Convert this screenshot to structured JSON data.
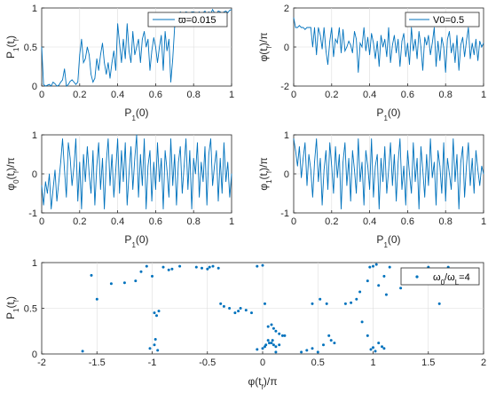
{
  "colors": {
    "series": "#0072bd",
    "axes": "#262626",
    "grid": "#dcdcdc"
  },
  "chart_data": [
    {
      "type": "line",
      "xlabel_main": "P",
      "xlabel_sub": "1",
      "xlabel_tail": "(0)",
      "ylabel_main": "P",
      "ylabel_sub": "1",
      "ylabel_mid": "(t",
      "ylabel_sub2": "f",
      "ylabel_tail": ")",
      "legend": "ϖ=0.015",
      "xlim": [
        0,
        1
      ],
      "ylim": [
        0,
        1
      ],
      "xticks": [
        0,
        0.2,
        0.4,
        0.6,
        0.8,
        1
      ],
      "yticks": [
        0,
        0.5,
        1
      ],
      "xtick_labels": [
        "0",
        "0.2",
        "0.4",
        "0.6",
        "0.8",
        "1"
      ],
      "ytick_labels": [
        "0",
        "0.5",
        "1"
      ],
      "x": [
        0,
        0.01,
        0.02,
        0.03,
        0.04,
        0.05,
        0.06,
        0.07,
        0.08,
        0.09,
        0.1,
        0.11,
        0.12,
        0.13,
        0.14,
        0.15,
        0.16,
        0.17,
        0.18,
        0.19,
        0.2,
        0.21,
        0.22,
        0.23,
        0.24,
        0.25,
        0.26,
        0.27,
        0.28,
        0.29,
        0.3,
        0.31,
        0.32,
        0.33,
        0.34,
        0.35,
        0.36,
        0.37,
        0.38,
        0.39,
        0.4,
        0.41,
        0.42,
        0.43,
        0.44,
        0.45,
        0.46,
        0.47,
        0.48,
        0.49,
        0.5,
        0.51,
        0.52,
        0.53,
        0.54,
        0.55,
        0.56,
        0.57,
        0.58,
        0.59,
        0.6,
        0.61,
        0.62,
        0.63,
        0.64,
        0.65,
        0.66,
        0.67,
        0.68,
        0.69,
        0.7,
        0.71,
        0.72,
        0.73,
        0.74,
        0.75,
        0.76,
        0.77,
        0.78,
        0.79,
        0.8,
        0.81,
        0.82,
        0.83,
        0.84,
        0.85,
        0.86,
        0.87,
        0.88,
        0.89,
        0.9,
        0.91,
        0.92,
        0.93,
        0.94,
        0.95,
        0.96,
        0.97,
        0.98,
        0.99,
        1
      ],
      "y": [
        0.5,
        0.02,
        0.0,
        0.01,
        0.02,
        0.0,
        0.05,
        0.03,
        0.0,
        0.01,
        0.05,
        0.08,
        0.22,
        0.0,
        0.02,
        0.06,
        0.08,
        0.05,
        0.02,
        0.05,
        0.4,
        0.6,
        0.3,
        0.35,
        0.5,
        0.4,
        0.15,
        0.05,
        0.1,
        0.35,
        0.2,
        0.4,
        0.55,
        0.3,
        0.15,
        0.3,
        0.1,
        0.3,
        0.45,
        0.2,
        0.8,
        0.55,
        0.3,
        0.6,
        0.35,
        0.8,
        0.45,
        0.3,
        0.7,
        0.4,
        0.5,
        0.6,
        0.3,
        0.6,
        0.7,
        0.5,
        0.6,
        0.2,
        0.45,
        0.62,
        0.5,
        0.3,
        0.5,
        0.65,
        0.2,
        0.7,
        0.45,
        0.6,
        0.05,
        0.35,
        0.75,
        0.85,
        0.9,
        0.95,
        0.92,
        0.93,
        0.95,
        0.94,
        0.93,
        0.95,
        0.95,
        0.94,
        0.93,
        0.95,
        0.92,
        0.94,
        0.96,
        0.9,
        0.95,
        0.93,
        0.98,
        0.94,
        0.92,
        0.96,
        0.95,
        0.93,
        0.95,
        0.96,
        0.94,
        0.97,
        0.98
      ]
    },
    {
      "type": "line",
      "xlabel_main": "P",
      "xlabel_sub": "1",
      "xlabel_tail": "(0)",
      "ylabel_main": "φ",
      "ylabel_mid": "(t",
      "ylabel_sub2": "f",
      "ylabel_tail": ")/π",
      "legend": "V0=0.5",
      "xlim": [
        0,
        1
      ],
      "ylim": [
        -2,
        2
      ],
      "xticks": [
        0,
        0.2,
        0.4,
        0.6,
        0.8,
        1
      ],
      "yticks": [
        -2,
        0,
        2
      ],
      "xtick_labels": [
        "0",
        "0.2",
        "0.4",
        "0.6",
        "0.8",
        "1"
      ],
      "ytick_labels": [
        "-2",
        "0",
        "2"
      ],
      "x": [
        0,
        0.01,
        0.02,
        0.03,
        0.04,
        0.05,
        0.06,
        0.07,
        0.08,
        0.09,
        0.1,
        0.11,
        0.12,
        0.13,
        0.14,
        0.15,
        0.16,
        0.17,
        0.18,
        0.19,
        0.2,
        0.21,
        0.22,
        0.23,
        0.24,
        0.25,
        0.26,
        0.27,
        0.28,
        0.29,
        0.3,
        0.31,
        0.32,
        0.33,
        0.34,
        0.35,
        0.36,
        0.37,
        0.38,
        0.39,
        0.4,
        0.41,
        0.42,
        0.43,
        0.44,
        0.45,
        0.46,
        0.47,
        0.48,
        0.49,
        0.5,
        0.51,
        0.52,
        0.53,
        0.54,
        0.55,
        0.56,
        0.57,
        0.58,
        0.59,
        0.6,
        0.61,
        0.62,
        0.63,
        0.64,
        0.65,
        0.66,
        0.67,
        0.68,
        0.69,
        0.7,
        0.71,
        0.72,
        0.73,
        0.74,
        0.75,
        0.76,
        0.77,
        0.78,
        0.79,
        0.8,
        0.81,
        0.82,
        0.83,
        0.84,
        0.85,
        0.86,
        0.87,
        0.88,
        0.89,
        0.9,
        0.91,
        0.92,
        0.93,
        0.94,
        0.95,
        0.96,
        0.97,
        0.98,
        0.99,
        1
      ],
      "y": [
        1.5,
        1.0,
        1.0,
        1.1,
        1.0,
        1.0,
        0.9,
        1.0,
        1.0,
        1.0,
        0.0,
        1.0,
        -0.4,
        1.0,
        0.6,
        -0.1,
        1.0,
        -0.2,
        -0.9,
        0.3,
        1.0,
        -0.5,
        0.4,
        0.2,
        1.0,
        -0.3,
        0.9,
        -0.2,
        0.0,
        0.3,
        0.1,
        -0.3,
        0.8,
        0.4,
        -1.3,
        0.2,
        0.0,
        1.0,
        -0.2,
        0.5,
        -0.4,
        0.7,
        0.2,
        -0.6,
        0.3,
        -1.0,
        0.6,
        0.0,
        0.4,
        -0.5,
        1.0,
        -0.8,
        0.1,
        0.6,
        -0.3,
        0.4,
        -1.0,
        0.3,
        0.7,
        -0.5,
        0.2,
        -0.9,
        1.0,
        -0.2,
        0.4,
        -0.6,
        0.8,
        0.0,
        -1.2,
        0.5,
        0.1,
        0.6,
        -0.4,
        0.2,
        1.0,
        -1.0,
        0.3,
        -0.7,
        0.5,
        0.0,
        -1.3,
        0.4,
        0.8,
        -0.3,
        0.2,
        -0.8,
        0.6,
        -1.2,
        0.1,
        0.5,
        -0.5,
        0.3,
        1.0,
        -0.6,
        0.2,
        -0.4,
        0.4,
        -0.7,
        0.3,
        0.0,
        0.2
      ]
    },
    {
      "type": "line",
      "xlabel_main": "P",
      "xlabel_sub": "1",
      "xlabel_tail": "(0)",
      "ylabel_main": "φ",
      "ylabel_sub": "0",
      "ylabel_mid": "(t",
      "ylabel_sub2": "f",
      "ylabel_tail": ")/π",
      "legend": "",
      "xlim": [
        0,
        1
      ],
      "ylim": [
        -1,
        1
      ],
      "xticks": [
        0,
        0.2,
        0.4,
        0.6,
        0.8,
        1
      ],
      "yticks": [
        -1,
        0,
        1
      ],
      "xtick_labels": [
        "0",
        "0.2",
        "0.4",
        "0.6",
        "0.8",
        "1"
      ],
      "ytick_labels": [
        "-1",
        "0",
        "1"
      ],
      "x": [
        0,
        0.01,
        0.02,
        0.03,
        0.04,
        0.05,
        0.06,
        0.07,
        0.08,
        0.09,
        0.1,
        0.11,
        0.12,
        0.13,
        0.14,
        0.15,
        0.16,
        0.17,
        0.18,
        0.19,
        0.2,
        0.21,
        0.22,
        0.23,
        0.24,
        0.25,
        0.26,
        0.27,
        0.28,
        0.29,
        0.3,
        0.31,
        0.32,
        0.33,
        0.34,
        0.35,
        0.36,
        0.37,
        0.38,
        0.39,
        0.4,
        0.41,
        0.42,
        0.43,
        0.44,
        0.45,
        0.46,
        0.47,
        0.48,
        0.49,
        0.5,
        0.51,
        0.52,
        0.53,
        0.54,
        0.55,
        0.56,
        0.57,
        0.58,
        0.59,
        0.6,
        0.61,
        0.62,
        0.63,
        0.64,
        0.65,
        0.66,
        0.67,
        0.68,
        0.69,
        0.7,
        0.71,
        0.72,
        0.73,
        0.74,
        0.75,
        0.76,
        0.77,
        0.78,
        0.79,
        0.8,
        0.81,
        0.82,
        0.83,
        0.84,
        0.85,
        0.86,
        0.87,
        0.88,
        0.89,
        0.9,
        0.91,
        0.92,
        0.93,
        0.94,
        0.95,
        0.96,
        0.97,
        0.98,
        0.99,
        1
      ],
      "y": [
        -0.3,
        -0.8,
        -0.2,
        -0.5,
        0.0,
        -0.9,
        -0.4,
        0.1,
        -0.7,
        -0.2,
        0.3,
        0.9,
        0.1,
        -0.6,
        0.8,
        0.4,
        -0.3,
        0.2,
        0.9,
        -0.7,
        0.3,
        -0.9,
        0.5,
        -0.2,
        0.7,
        0.0,
        -0.5,
        0.6,
        -0.8,
        0.2,
        0.8,
        -0.4,
        0.4,
        -0.9,
        0.3,
        0.9,
        -0.3,
        0.5,
        -0.6,
        0.1,
        0.9,
        -0.5,
        0.6,
        -0.2,
        0.8,
        -0.8,
        0.0,
        0.7,
        -0.4,
        0.4,
        1.0,
        -0.6,
        0.5,
        -0.3,
        0.9,
        -0.9,
        0.2,
        0.6,
        -0.7,
        0.3,
        -0.4,
        0.8,
        -0.2,
        0.4,
        -0.9,
        0.6,
        0.1,
        -0.6,
        0.9,
        -0.3,
        0.5,
        -0.8,
        0.3,
        0.7,
        -0.5,
        0.2,
        0.9,
        -0.4,
        0.6,
        -0.9,
        0.4,
        0.0,
        0.8,
        -0.6,
        0.3,
        -0.2,
        0.7,
        -0.8,
        0.5,
        0.9,
        -0.3,
        0.2,
        0.6,
        -0.7,
        0.4,
        -0.5,
        0.8,
        -0.2,
        0.3,
        -0.6,
        0.0
      ]
    },
    {
      "type": "line",
      "xlabel_main": "P",
      "xlabel_sub": "1",
      "xlabel_tail": "(0)",
      "ylabel_main": "φ",
      "ylabel_sub": "1",
      "ylabel_mid": "(t",
      "ylabel_sub2": "f",
      "ylabel_tail": ")/π",
      "legend": "",
      "xlim": [
        0,
        1
      ],
      "ylim": [
        -1,
        1
      ],
      "xticks": [
        0,
        0.2,
        0.4,
        0.6,
        0.8,
        1
      ],
      "yticks": [
        -1,
        0,
        1
      ],
      "xtick_labels": [
        "0",
        "0.2",
        "0.4",
        "0.6",
        "0.8",
        "1"
      ],
      "ytick_labels": [
        "-1",
        "0",
        "1"
      ],
      "x": [
        0,
        0.01,
        0.02,
        0.03,
        0.04,
        0.05,
        0.06,
        0.07,
        0.08,
        0.09,
        0.1,
        0.11,
        0.12,
        0.13,
        0.14,
        0.15,
        0.16,
        0.17,
        0.18,
        0.19,
        0.2,
        0.21,
        0.22,
        0.23,
        0.24,
        0.25,
        0.26,
        0.27,
        0.28,
        0.29,
        0.3,
        0.31,
        0.32,
        0.33,
        0.34,
        0.35,
        0.36,
        0.37,
        0.38,
        0.39,
        0.4,
        0.41,
        0.42,
        0.43,
        0.44,
        0.45,
        0.46,
        0.47,
        0.48,
        0.49,
        0.5,
        0.51,
        0.52,
        0.53,
        0.54,
        0.55,
        0.56,
        0.57,
        0.58,
        0.59,
        0.6,
        0.61,
        0.62,
        0.63,
        0.64,
        0.65,
        0.66,
        0.67,
        0.68,
        0.69,
        0.7,
        0.71,
        0.72,
        0.73,
        0.74,
        0.75,
        0.76,
        0.77,
        0.78,
        0.79,
        0.8,
        0.81,
        0.82,
        0.83,
        0.84,
        0.85,
        0.86,
        0.87,
        0.88,
        0.89,
        0.9,
        0.91,
        0.92,
        0.93,
        0.94,
        0.95,
        0.96,
        0.97,
        0.98,
        0.99,
        1
      ],
      "y": [
        0.9,
        0.6,
        0.2,
        0.7,
        -0.1,
        0.4,
        0.8,
        -0.3,
        0.5,
        0.1,
        -0.6,
        0.3,
        0.9,
        -0.2,
        0.4,
        -0.8,
        0.1,
        0.6,
        -0.4,
        0.8,
        0.2,
        -0.5,
        0.7,
        -0.1,
        0.5,
        -0.9,
        0.3,
        0.8,
        -0.3,
        0.4,
        -0.7,
        0.6,
        0.1,
        -0.5,
        0.9,
        -0.2,
        0.3,
        -0.8,
        0.6,
        0.2,
        -0.4,
        0.9,
        -0.6,
        0.2,
        0.5,
        -0.9,
        0.4,
        -0.2,
        0.7,
        -0.5,
        0.1,
        0.8,
        -0.3,
        0.5,
        -0.7,
        0.3,
        0.9,
        -0.4,
        0.2,
        -0.8,
        0.6,
        0.0,
        -0.5,
        0.8,
        -0.2,
        0.4,
        -0.9,
        0.7,
        0.1,
        -0.6,
        0.5,
        -0.3,
        0.9,
        -0.1,
        0.3,
        -0.8,
        0.6,
        0.2,
        -0.5,
        0.8,
        -0.7,
        0.4,
        0.0,
        -0.4,
        0.9,
        -0.2,
        0.5,
        -0.9,
        0.3,
        0.7,
        -0.6,
        0.2,
        0.8,
        -0.3,
        0.4,
        -0.5,
        0.6,
        0.1,
        -0.3,
        0.2,
        0.0
      ]
    },
    {
      "type": "scatter",
      "xlabel_main": "φ",
      "xlabel_mid": "(t",
      "xlabel_sub2": "f",
      "xlabel_tail": ")/π",
      "ylabel_main": "P",
      "ylabel_sub": "1",
      "ylabel_mid": "(t",
      "ylabel_sub2": "f",
      "ylabel_tail": ")",
      "legend_main": "ω",
      "legend_sub1": "0",
      "legend_mid": "/ω",
      "legend_sub2": "L",
      "legend_tail": "=4",
      "xlim": [
        -2,
        2
      ],
      "ylim": [
        0,
        1
      ],
      "xticks": [
        -2,
        -1.5,
        -1,
        -0.5,
        0,
        0.5,
        1,
        1.5,
        2
      ],
      "yticks": [
        0,
        0.5,
        1
      ],
      "xtick_labels": [
        "-2",
        "-1.5",
        "-1",
        "-0.5",
        "0",
        "0.5",
        "1",
        "1.5",
        "2"
      ],
      "ytick_labels": [
        "0",
        "0.5",
        "1"
      ],
      "x": [
        -1.55,
        -1.5,
        -1.37,
        -1.25,
        -1.15,
        -1.1,
        -1.05,
        -1.0,
        -0.98,
        -0.96,
        -0.94,
        -0.97,
        -0.95,
        -1.02,
        -0.98,
        -0.75,
        -0.6,
        -0.55,
        -0.5,
        -0.48,
        -0.45,
        -0.4,
        -0.38,
        -0.35,
        -0.3,
        -0.25,
        -0.22,
        -0.2,
        -0.15,
        -0.1,
        -0.05,
        0.0,
        0.02,
        0.05,
        0.08,
        0.1,
        0.12,
        0.15,
        0.18,
        0.2,
        0.05,
        0.08,
        0.1,
        0.12,
        0.15,
        -0.05,
        0.0,
        0.02,
        0.03,
        0.06,
        0.09,
        0.12,
        0.35,
        0.4,
        0.45,
        0.5,
        0.55,
        0.6,
        0.62,
        0.65,
        0.45,
        0.52,
        0.58,
        0.75,
        0.8,
        0.85,
        0.9,
        0.95,
        0.98,
        1.0,
        1.02,
        1.05,
        1.08,
        1.1,
        1.0,
        1.03,
        0.97,
        1.05,
        1.12,
        1.15,
        1.25,
        1.35,
        1.5,
        1.6,
        1.68,
        1.1,
        0.95,
        0.88,
        -0.9,
        -0.85,
        -0.82,
        -1.63
      ],
      "y": [
        0.86,
        0.6,
        0.77,
        0.78,
        0.8,
        0.9,
        0.96,
        0.85,
        0.45,
        0.42,
        0.47,
        0.16,
        0.04,
        0.06,
        0.1,
        0.96,
        0.95,
        0.94,
        0.93,
        0.95,
        0.96,
        0.94,
        0.55,
        0.52,
        0.5,
        0.45,
        0.47,
        0.5,
        0.48,
        0.45,
        0.96,
        0.97,
        0.55,
        0.3,
        0.32,
        0.28,
        0.25,
        0.22,
        0.2,
        0.2,
        0.15,
        0.12,
        0.1,
        0.08,
        0.1,
        0.05,
        0.06,
        0.08,
        0.1,
        0.12,
        0.15,
        0.02,
        0.02,
        0.04,
        0.06,
        0.02,
        0.1,
        0.2,
        0.15,
        0.12,
        0.55,
        0.6,
        0.55,
        0.55,
        0.56,
        0.6,
        0.35,
        0.2,
        0.05,
        0.07,
        0.03,
        0.12,
        0.08,
        0.06,
        0.96,
        0.98,
        0.95,
        0.75,
        0.65,
        0.95,
        0.72,
        0.88,
        0.95,
        0.55,
        0.95,
        0.85,
        0.8,
        0.68,
        0.95,
        0.92,
        0.93,
        0.03
      ]
    }
  ]
}
